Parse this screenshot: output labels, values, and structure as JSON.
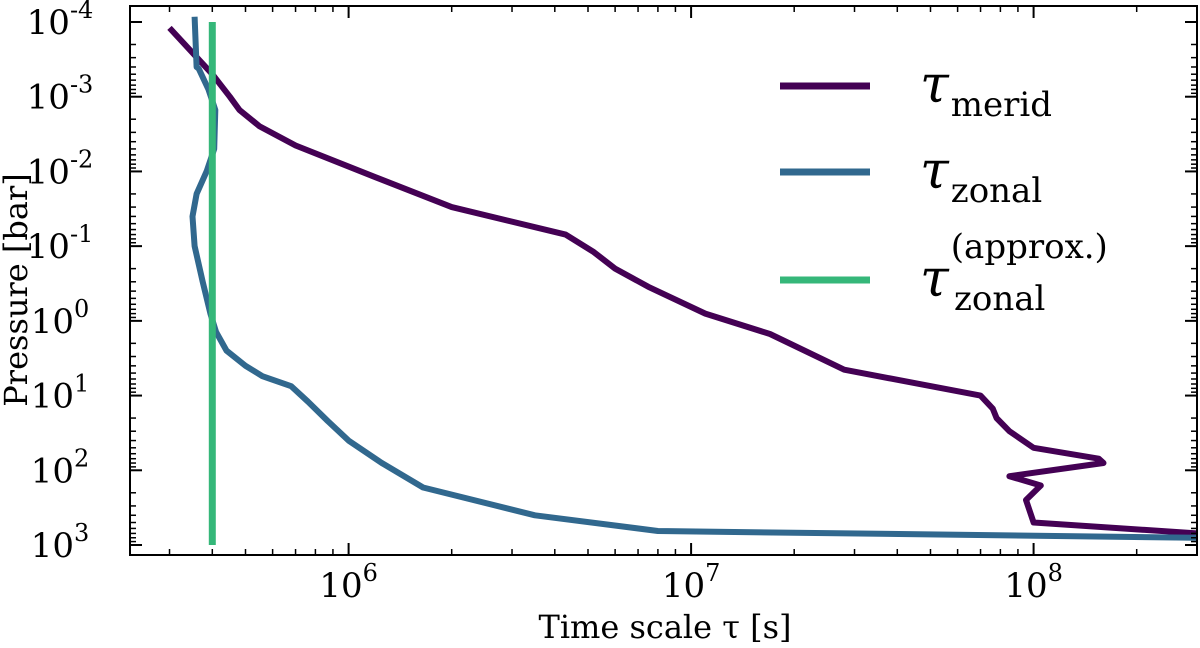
{
  "chart_data": {
    "type": "line",
    "xlabel": "Time scale τ [s]",
    "ylabel": "Pressure [bar]",
    "x_scale": "log",
    "y_scale": "log",
    "y_inverted": true,
    "xlim": [
      230000,
      300000000
    ],
    "ylim": [
      0.0001,
      1000
    ],
    "grid": false,
    "legend_position": "top-right",
    "x_ticks": [
      {
        "value": 1000000,
        "base": "10",
        "exp": "6"
      },
      {
        "value": 10000000,
        "base": "10",
        "exp": "7"
      },
      {
        "value": 100000000,
        "base": "10",
        "exp": "8"
      }
    ],
    "y_ticks": [
      {
        "value": 0.0001,
        "base": "10",
        "exp": "-4"
      },
      {
        "value": 0.001,
        "base": "10",
        "exp": "-3"
      },
      {
        "value": 0.01,
        "base": "10",
        "exp": "-2"
      },
      {
        "value": 0.1,
        "base": "10",
        "exp": "-1"
      },
      {
        "value": 1,
        "base": "10",
        "exp": "0"
      },
      {
        "value": 10,
        "base": "10",
        "exp": "1"
      },
      {
        "value": 100,
        "base": "10",
        "exp": "2"
      },
      {
        "value": 1000,
        "base": "10",
        "exp": "3"
      }
    ],
    "series": [
      {
        "name": "τ_merid",
        "legend_symbol": "τ",
        "legend_sub": "merid",
        "legend_sup": "",
        "color": "#440154",
        "x": [
          300000,
          400000,
          450000,
          480000,
          550000,
          700000,
          1200000,
          2000000,
          4300000,
          5200000,
          6000000,
          7500000,
          11000000,
          17000000,
          28000000,
          70000000,
          76000000,
          78000000,
          85000000,
          100000000,
          155000000,
          160000000,
          85000000,
          105000000,
          95000000,
          100000000,
          300000000
        ],
        "y": [
          0.00012,
          0.0005,
          0.001,
          0.0015,
          0.0025,
          0.0045,
          0.012,
          0.03,
          0.07,
          0.12,
          0.2,
          0.35,
          0.8,
          1.5,
          4.5,
          10,
          15,
          20,
          30,
          50,
          70,
          80,
          120,
          160,
          250,
          500,
          700
        ]
      },
      {
        "name": "τ_zonal",
        "legend_symbol": "τ",
        "legend_sub": "zonal",
        "legend_sup": "",
        "color": "#31688e",
        "x": [
          355000,
          360000,
          365000,
          390000,
          408000,
          405000,
          385000,
          360000,
          350000,
          355000,
          375000,
          395000,
          410000,
          440000,
          500000,
          560000,
          680000,
          760000,
          870000,
          1000000,
          1250000,
          1650000,
          3500000,
          8000000,
          300000000
        ],
        "y": [
          8.5e-05,
          0.0004,
          0.00042,
          0.0008,
          0.0015,
          0.005,
          0.01,
          0.02,
          0.04,
          0.1,
          0.3,
          0.8,
          1.4,
          2.5,
          4,
          5.5,
          7.5,
          12,
          22,
          40,
          80,
          170,
          400,
          650,
          800
        ]
      },
      {
        "name": "τ_zonal^(approx.)",
        "legend_symbol": "τ",
        "legend_sub": "zonal",
        "legend_sup": "(approx.)",
        "color": "#35b779",
        "x": [
          400000,
          400000
        ],
        "y": [
          0.0001,
          1000
        ]
      }
    ]
  }
}
